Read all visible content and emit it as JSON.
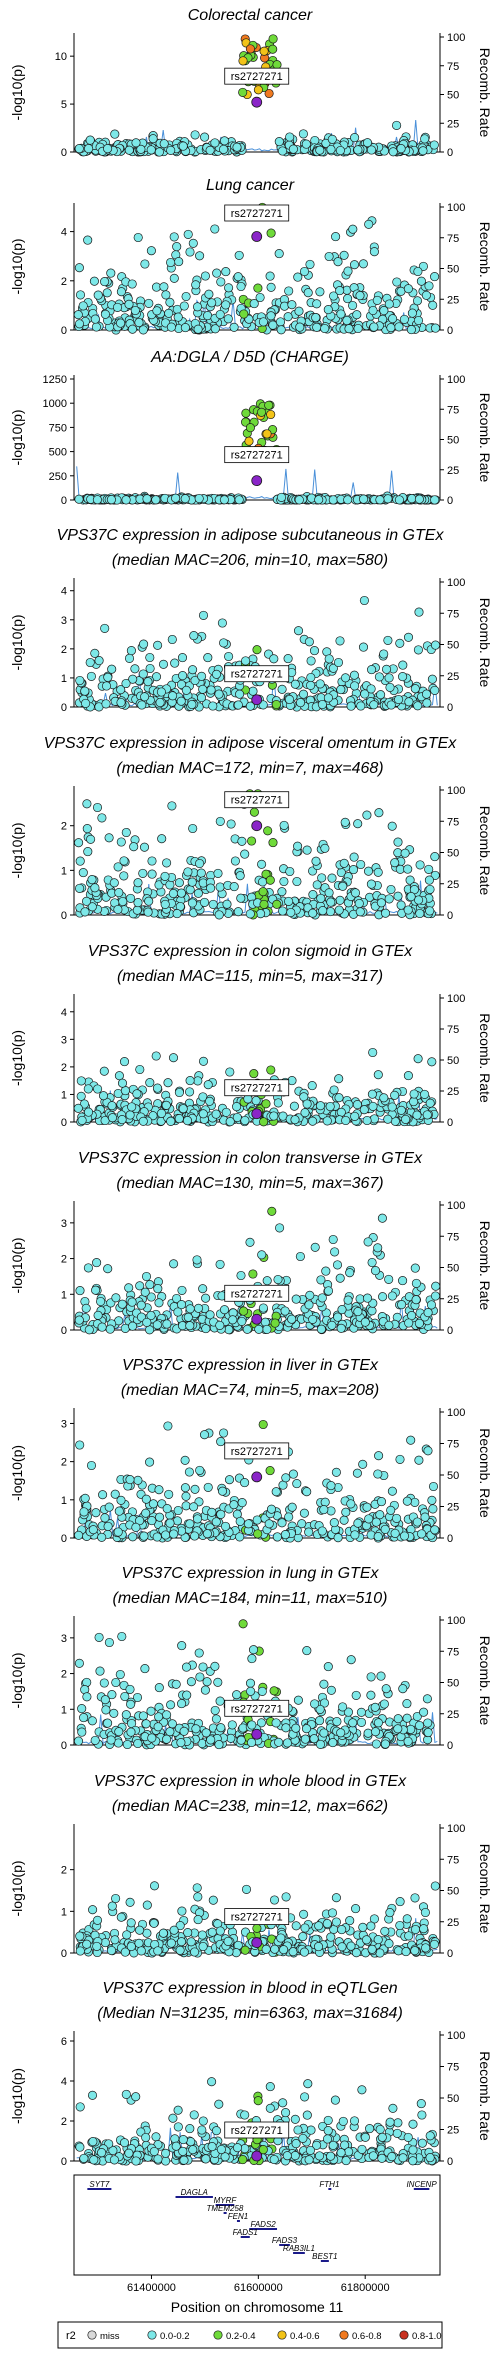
{
  "figure": {
    "y_axis_label": "-log10(p)",
    "right_axis_label": "Recomb. Rate",
    "lead_snp": "rs2727271",
    "x_axis_label": "Position on chromosome 11",
    "x_ticks": [
      "61400000",
      "61600000",
      "61800000"
    ],
    "legend": {
      "title": "r2",
      "items": [
        {
          "label": "miss",
          "color": "#d9d9d9"
        },
        {
          "label": "0.0-0.2",
          "color": "#7de8e8"
        },
        {
          "label": "0.2-0.4",
          "color": "#6fda3a"
        },
        {
          "label": "0.4-0.6",
          "color": "#f2c318"
        },
        {
          "label": "0.6-0.8",
          "color": "#f07a20"
        },
        {
          "label": "0.8-1.0",
          "color": "#c83222"
        }
      ],
      "lead_color": "#8a25c8"
    }
  },
  "chart_data": [
    {
      "type": "scatter",
      "title": "Colorectal cancer",
      "subtitle": "",
      "ylim": [
        0,
        12
      ],
      "yticks": [
        0,
        5,
        10
      ],
      "rticks": [
        0,
        25,
        50,
        75,
        100
      ]
    },
    {
      "type": "scatter",
      "title": "Lung cancer",
      "subtitle": "",
      "ylim": [
        0,
        5
      ],
      "yticks": [
        0,
        2,
        4
      ],
      "rticks": [
        0,
        25,
        50,
        75,
        100
      ]
    },
    {
      "type": "scatter",
      "title": "AA:DGLA / D5D (CHARGE)",
      "subtitle": "",
      "ylim": [
        0,
        1250
      ],
      "yticks": [
        0,
        250,
        500,
        750,
        1000,
        1250
      ],
      "rticks": [
        0,
        25,
        50,
        75,
        100
      ]
    },
    {
      "type": "scatter",
      "title": "VPS37C expression in adipose subcutaneous in GTEx",
      "subtitle": "(median MAC=206, min=10, max=580)",
      "ylim": [
        0,
        4.3
      ],
      "yticks": [
        0,
        1,
        2,
        3,
        4
      ],
      "rticks": [
        0,
        25,
        50,
        75,
        100
      ]
    },
    {
      "type": "scatter",
      "title": "VPS37C expression in adipose visceral omentum in GTEx",
      "subtitle": "(median MAC=172, min=7, max=468)",
      "ylim": [
        0,
        2.8
      ],
      "yticks": [
        0,
        1,
        2
      ],
      "rticks": [
        0,
        25,
        50,
        75,
        100
      ]
    },
    {
      "type": "scatter",
      "title": "VPS37C expression in colon sigmoid in GTEx",
      "subtitle": "(median MAC=115, min=5, max=317)",
      "ylim": [
        0,
        4.5
      ],
      "yticks": [
        0,
        1,
        2,
        3,
        4
      ],
      "rticks": [
        0,
        25,
        50,
        75,
        100
      ]
    },
    {
      "type": "scatter",
      "title": "VPS37C expression in colon transverse in GTEx",
      "subtitle": "(median MAC=130, min=5, max=367)",
      "ylim": [
        0,
        3.5
      ],
      "yticks": [
        0,
        1,
        2,
        3
      ],
      "rticks": [
        0,
        25,
        50,
        75,
        100
      ]
    },
    {
      "type": "scatter",
      "title": "VPS37C expression in liver in GTEx",
      "subtitle": "(median MAC=74, min=5, max=208)",
      "ylim": [
        0,
        3.3
      ],
      "yticks": [
        0,
        1,
        2,
        3
      ],
      "rticks": [
        0,
        25,
        50,
        75,
        100
      ]
    },
    {
      "type": "scatter",
      "title": "VPS37C expression in lung in GTEx",
      "subtitle": "(median MAC=184, min=11, max=510)",
      "ylim": [
        0,
        3.5
      ],
      "yticks": [
        0,
        1,
        2,
        3
      ],
      "rticks": [
        0,
        25,
        50,
        75,
        100
      ]
    },
    {
      "type": "scatter",
      "title": "VPS37C expression in whole blood in GTEx",
      "subtitle": "(median MAC=238, min=12, max=662)",
      "ylim": [
        0,
        3.0
      ],
      "yticks": [
        0,
        1,
        2
      ],
      "rticks": [
        0,
        25,
        50,
        75,
        100
      ]
    },
    {
      "type": "scatter",
      "title": "VPS37C expression in blood in eQTLGen",
      "subtitle": "(Median N=31235, min=6363, max=31684)",
      "ylim": [
        0,
        6.3
      ],
      "yticks": [
        0,
        2,
        4,
        6
      ],
      "rticks": [
        0,
        25,
        50,
        75,
        100
      ]
    }
  ],
  "genes": [
    {
      "name": "SYT7",
      "start": 61280000,
      "end": 61325000,
      "row": 0
    },
    {
      "name": "DAGLA",
      "start": 61445000,
      "end": 61515000,
      "row": 1
    },
    {
      "name": "FTH1",
      "start": 61731000,
      "end": 61735000,
      "row": 0
    },
    {
      "name": "INCENP",
      "start": 61891000,
      "end": 61920000,
      "row": 0
    },
    {
      "name": "MYRF",
      "start": 61520000,
      "end": 61555000,
      "row": 2
    },
    {
      "name": "TMEM258",
      "start": 61535000,
      "end": 61540000,
      "row": 3
    },
    {
      "name": "FEN1",
      "start": 61560000,
      "end": 61564000,
      "row": 4
    },
    {
      "name": "FADS2",
      "start": 61583000,
      "end": 61635000,
      "row": 5
    },
    {
      "name": "FADS1",
      "start": 61567000,
      "end": 61584000,
      "row": 6
    },
    {
      "name": "FADS3",
      "start": 61639000,
      "end": 61659000,
      "row": 7
    },
    {
      "name": "RAB3IL1",
      "start": 61665000,
      "end": 61687000,
      "row": 8
    },
    {
      "name": "BEST1",
      "start": 61717000,
      "end": 61732000,
      "row": 9
    }
  ]
}
